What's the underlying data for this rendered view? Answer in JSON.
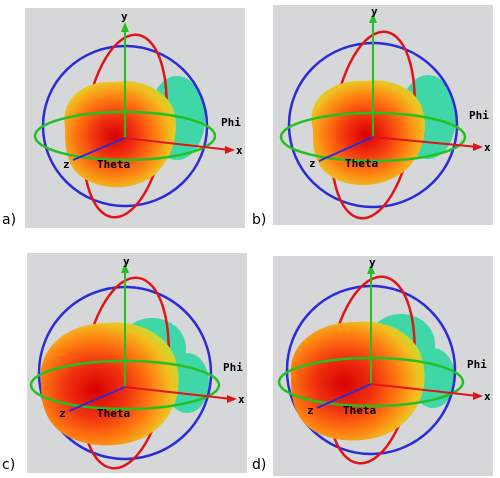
{
  "panels": [
    {
      "id": "a",
      "label": "a)",
      "axis_y": "y",
      "axis_x": "x",
      "axis_z": "z",
      "phi": "Phi",
      "theta": "Theta"
    },
    {
      "id": "b",
      "label": "b)",
      "axis_y": "y",
      "axis_x": "x",
      "axis_z": "z",
      "phi": "Phi",
      "theta": "Theta"
    },
    {
      "id": "c",
      "label": "c)",
      "axis_y": "y",
      "axis_x": "x",
      "axis_z": "z",
      "phi": "Phi",
      "theta": "Theta"
    },
    {
      "id": "d",
      "label": "d)",
      "axis_y": "y",
      "axis_x": "x",
      "axis_z": "z",
      "phi": "Phi",
      "theta": "Theta"
    }
  ],
  "colors": {
    "background": "#d5d7d8",
    "ring_blue": "#2b2bd8",
    "ring_red": "#e01515",
    "ring_green": "#22c022",
    "axis_green": "#22c022",
    "axis_red": "#e01515",
    "lobe_center": "#e00000",
    "lobe_mid": "#ff6a00",
    "lobe_edge": "#e8d020",
    "lobe_side": "#3fd6a8"
  }
}
